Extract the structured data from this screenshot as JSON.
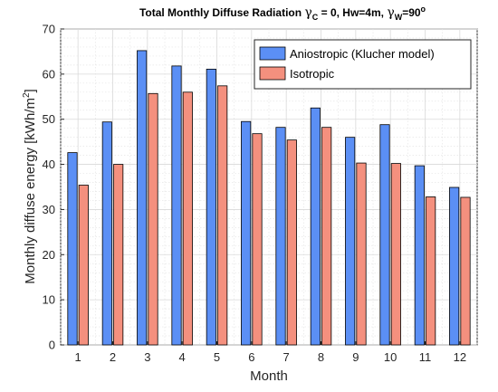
{
  "chart_data": {
    "type": "bar",
    "title": "Total Monthly Diffuse Radiation γC = 0, Hw=4m, γW=90°",
    "title_parts": {
      "prefix": "Total Monthly Diffuse Radiation ",
      "gamma": "γ",
      "sub_c": "C",
      "mid": " = 0, Hw=4m, ",
      "sub_w": "W",
      "suffix": "=90",
      "sup": "o"
    },
    "xlabel": "Month",
    "ylabel": "Monthly diffuse energy [kWh/m2]",
    "ylabel_parts": {
      "main": "Monthly diffuse energy [kWh/m",
      "sup": "2",
      "end": "]"
    },
    "categories": [
      "1",
      "2",
      "3",
      "4",
      "5",
      "6",
      "7",
      "8",
      "9",
      "10",
      "11",
      "12"
    ],
    "series": [
      {
        "name": "Aniostropic (Klucher model)",
        "color": "#5b8ff5",
        "values": [
          42.6,
          49.4,
          65.2,
          61.8,
          61.1,
          49.5,
          48.2,
          52.5,
          46.0,
          48.8,
          39.7,
          34.9
        ]
      },
      {
        "name": "Isotropic",
        "color": "#f4907e",
        "values": [
          35.4,
          40.0,
          55.7,
          56.0,
          57.4,
          46.8,
          45.4,
          48.2,
          40.3,
          40.2,
          32.8,
          32.7
        ]
      }
    ],
    "ylim": [
      0,
      70
    ],
    "yticks": [
      0,
      10,
      20,
      30,
      40,
      50,
      60,
      70
    ],
    "grid": true,
    "legend": "top-right"
  }
}
